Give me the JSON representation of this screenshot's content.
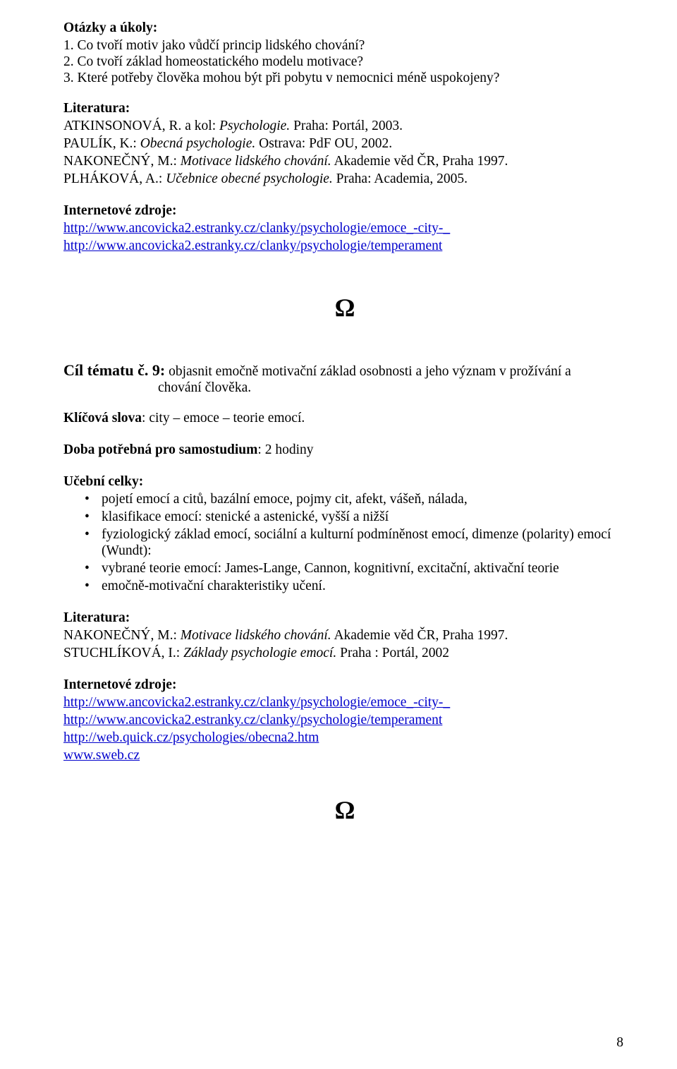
{
  "colors": {
    "text": "#000000",
    "link": "#0000cc",
    "background": "#ffffff"
  },
  "typography": {
    "body_family": "Times New Roman, serif",
    "body_size_pt": 15,
    "omega_size_pt": 27
  },
  "otazky_heading": "Otázky a úkoly:",
  "otazky": {
    "q1": "1. Co tvoří motiv jako vůdčí princip lidského chování?",
    "q2": "2. Co tvoří základ homeostatického modelu motivace?",
    "q3": "3. Které potřeby člověka mohou být při pobytu v nemocnici méně uspokojeny?"
  },
  "literatura1_heading": "Literatura:",
  "literatura1": {
    "l1_pre": "ATKINSONOVÁ, R. a kol: ",
    "l1_it": "Psychologie.",
    "l1_post": " Praha: Portál, 2003.",
    "l2_pre": "PAULÍK, K.: ",
    "l2_it": "Obecná psychologie.",
    "l2_post": " Ostrava: PdF OU, 2002.",
    "l3_pre": "NAKONEČNÝ, M.: ",
    "l3_it": "Motivace lidského chování.",
    "l3_post": " Akademie věd ČR, Praha 1997.",
    "l4_pre": "PLHÁKOVÁ, A.: ",
    "l4_it": "Učebnice obecné psychologie.",
    "l4_post": " Praha: Academia, 2005."
  },
  "inet1_heading": "Internetové zdroje:",
  "inet1": {
    "u1": "http://www.ancovicka2.estranky.cz/clanky/psychologie/emoce_-city-_",
    "u2": "http://www.ancovicka2.estranky.cz/clanky/psychologie/temperament"
  },
  "omega": "Ω",
  "cil": {
    "label": "Cíl tématu č. 9:",
    "line1": " objasnit emočně motivační základ osobnosti a jeho význam v prožívání a",
    "line2": "chování člověka."
  },
  "klicova_label": "Klíčová slova",
  "klicova_rest": ": city – emoce – teorie emocí.",
  "doba_label": "Doba potřebná pro samostudium",
  "doba_rest": ": 2 hodiny",
  "ucebni_heading": "Učební celky:",
  "ucebni": {
    "b1": "pojetí emocí a citů, bazální emoce,  pojmy cit, afekt, vášeň, nálada,",
    "b2": "klasifikace emocí: stenické a astenické, vyšší a nižší",
    "b3": "fyziologický základ emocí, sociální a kulturní podmíněnost emocí, dimenze (polarity) emocí (Wundt):",
    "b4": "vybrané teorie emocí: James-Lange, Cannon, kognitivní, excitační, aktivační teorie",
    "b5": "emočně-motivační charakteristiky učení."
  },
  "literatura2_heading": "Literatura:",
  "literatura2": {
    "l1_pre": "NAKONEČNÝ, M.: ",
    "l1_it": "Motivace lidského chování.",
    "l1_post": " Akademie věd ČR, Praha 1997.",
    "l2_pre": "STUCHLÍKOVÁ, I.: ",
    "l2_it": "Základy psychologie emocí.",
    "l2_post": " Praha : Portál, 2002"
  },
  "inet2_heading": "Internetové zdroje:",
  "inet2": {
    "u1": "http://www.ancovicka2.estranky.cz/clanky/psychologie/emoce_-city-_",
    "u2": "http://www.ancovicka2.estranky.cz/clanky/psychologie/temperament",
    "u3": "http://web.quick.cz/psychologies/obecna2.htm",
    "u4": "www.sweb.cz"
  },
  "page_number": "8"
}
